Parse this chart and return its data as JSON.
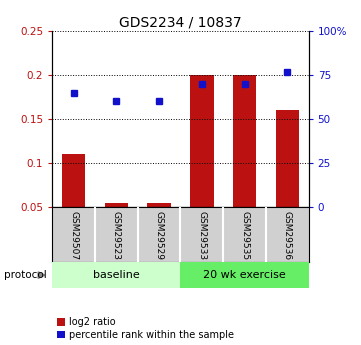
{
  "title": "GDS2234 / 10837",
  "samples": [
    "GSM29507",
    "GSM29523",
    "GSM29529",
    "GSM29533",
    "GSM29535",
    "GSM29536"
  ],
  "log2_ratio": [
    0.11,
    0.055,
    0.055,
    0.2,
    0.2,
    0.16
  ],
  "percentile_rank": [
    65,
    60,
    60,
    70,
    70,
    77
  ],
  "bar_color": "#bb1111",
  "dot_color": "#1111cc",
  "ylim_left": [
    0.05,
    0.25
  ],
  "ylim_right": [
    0,
    100
  ],
  "yticks_left": [
    0.05,
    0.1,
    0.15,
    0.2,
    0.25
  ],
  "ytick_labels_left": [
    "0.05",
    "0.1",
    "0.15",
    "0.2",
    "0.25"
  ],
  "yticks_right": [
    0,
    25,
    50,
    75,
    100
  ],
  "ytick_labels_right": [
    "0",
    "25",
    "50",
    "75",
    "100%"
  ],
  "group0_label": "baseline",
  "group1_label": "20 wk exercise",
  "group0_color": "#ccffcc",
  "group1_color": "#66ee66",
  "protocol_label": "protocol",
  "legend_red_label": "log2 ratio",
  "legend_blue_label": "percentile rank within the sample",
  "background_color": "#ffffff",
  "title_fontsize": 10,
  "tick_fontsize": 7.5,
  "sample_label_fontsize": 6.5,
  "legend_fontsize": 7,
  "group_label_fontsize": 8
}
